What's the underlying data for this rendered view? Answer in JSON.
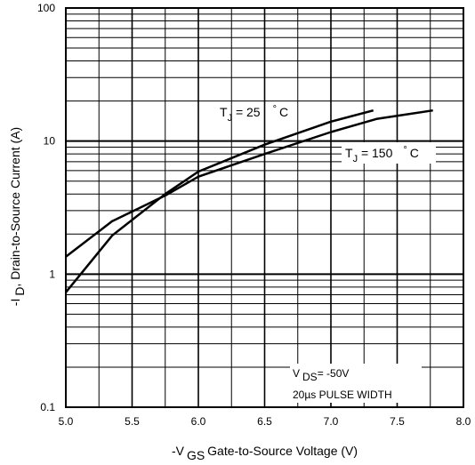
{
  "chart_data": {
    "type": "line",
    "title": "",
    "xlabel": {
      "prefix": "-V",
      "sub": "GS",
      "rest": "Gate-to-Source Voltage (V)"
    },
    "ylabel": {
      "prefix": "-I",
      "sub": "D",
      "rest": ", Drain-to-Source Current (A)"
    },
    "xlim": [
      5.0,
      8.0
    ],
    "ylim": [
      0.1,
      100
    ],
    "yscale": "log",
    "grid": true,
    "x_ticks": [
      "5.0",
      "5.5",
      "6.0",
      "6.5",
      "7.0",
      "7.5",
      "8.0"
    ],
    "y_ticks": [
      "0.1",
      "1",
      "10",
      "100"
    ],
    "series": [
      {
        "name": "T_J = 25 °C",
        "label": {
          "t": "T",
          "sub": "J",
          "rest": " = 25",
          "deg": "°",
          "unit": "C"
        },
        "x": [
          5.0,
          5.35,
          5.75,
          6.0,
          6.5,
          7.0,
          7.32
        ],
        "y": [
          0.73,
          1.95,
          4.0,
          5.9,
          9.4,
          14.0,
          17.0
        ]
      },
      {
        "name": "T_J = 150 °C",
        "label": {
          "t": "T",
          "sub": "J",
          "rest": " = 150",
          "deg": "°",
          "unit": "C"
        },
        "x": [
          5.0,
          5.35,
          5.75,
          6.0,
          6.5,
          7.0,
          7.35,
          7.77
        ],
        "y": [
          1.35,
          2.5,
          3.9,
          5.4,
          8.0,
          11.7,
          14.7,
          17.0
        ]
      }
    ],
    "annotations": {
      "vds": {
        "prefix": "V",
        "sub": "DS",
        "rest": "= -50V"
      },
      "pulse": "20µs PULSE WIDTH"
    }
  }
}
